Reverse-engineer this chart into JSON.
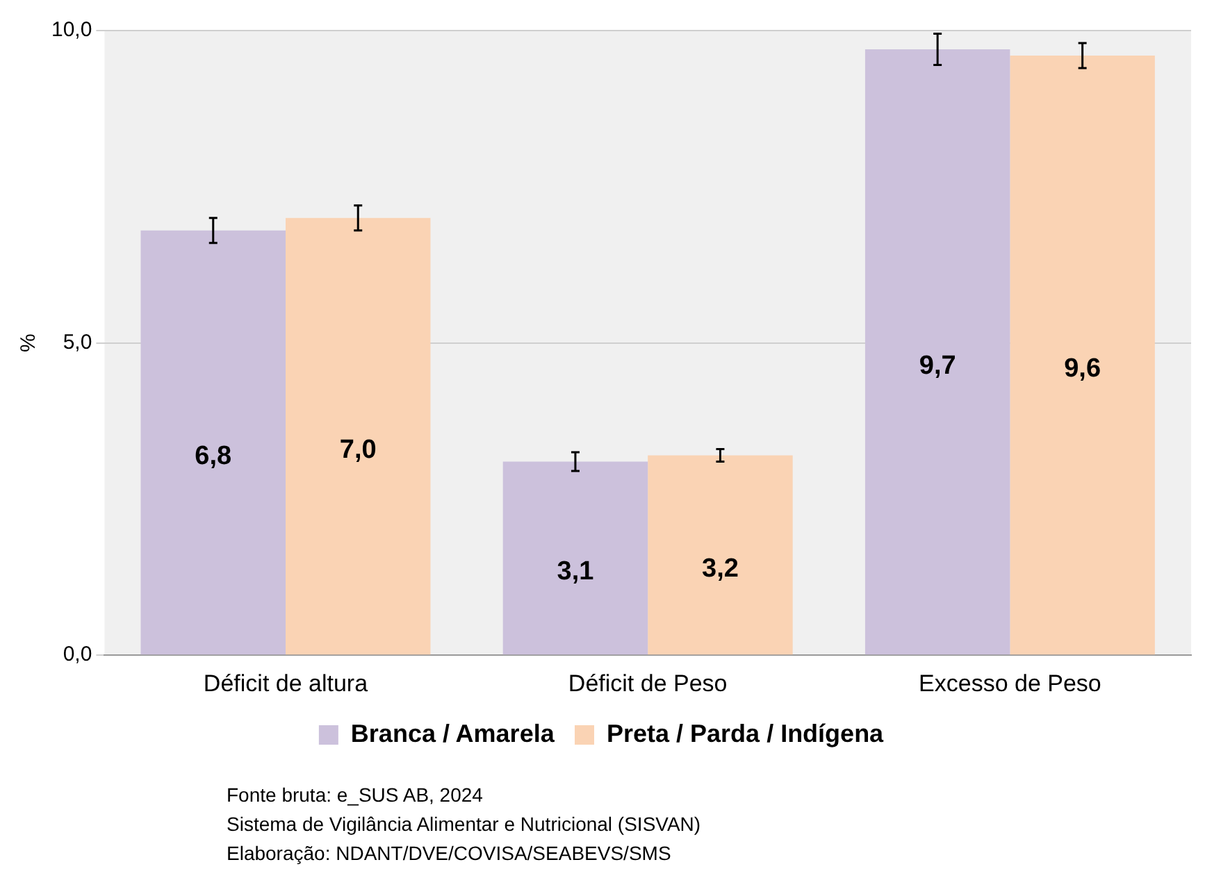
{
  "chart_data": {
    "type": "bar",
    "ylabel": "%",
    "categories": [
      "Déficit de altura",
      "Déficit de Peso",
      "Excesso de Peso"
    ],
    "series": [
      {
        "name": "Branca / Amarela",
        "color": "#ccc1dc",
        "values": [
          6.8,
          3.1,
          9.7
        ],
        "errors": [
          0.2,
          0.15,
          0.25
        ],
        "value_labels": [
          "6,8",
          "3,1",
          "9,7"
        ]
      },
      {
        "name": "Preta / Parda / Indígena",
        "color": "#fad3b4",
        "values": [
          7.0,
          3.2,
          9.6
        ],
        "errors": [
          0.2,
          0.1,
          0.2
        ],
        "value_labels": [
          "7,0",
          "3,2",
          "9,6"
        ]
      }
    ],
    "ylim": [
      0,
      10
    ],
    "yticks": [
      {
        "value": 0,
        "label": "0,0"
      },
      {
        "value": 5,
        "label": "5,0"
      },
      {
        "value": 10,
        "label": "10,0"
      }
    ],
    "grid": "y",
    "legend": "bottom",
    "annotations": [
      "Fonte bruta: e_SUS AB, 2024",
      "Sistema de Vigilância Alimentar e Nutricional (SISVAN)",
      "Elaboração: NDANT/DVE/COVISA/SEABEVS/SMS"
    ]
  }
}
